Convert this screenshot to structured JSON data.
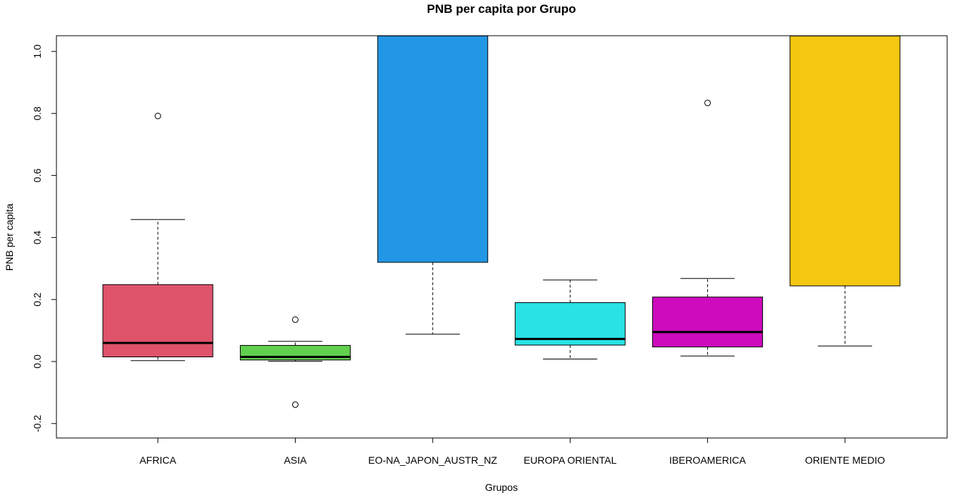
{
  "chart_data": {
    "type": "boxplot",
    "title": "PNB per capita por Grupo",
    "xlabel": "Grupos",
    "ylabel": "PNB per capita",
    "ylim": [
      -0.2,
      1.0
    ],
    "y_ticks": [
      -0.2,
      0.0,
      0.2,
      0.4,
      0.6,
      0.8,
      1.0
    ],
    "y_tick_labels": [
      "-0.2",
      "0.0",
      "0.2",
      "0.4",
      "0.6",
      "0.8",
      "1.0"
    ],
    "grid": false,
    "categories": [
      "AFRICA",
      "ASIA",
      "EO-NA_JAPON_AUSTR_NZ",
      "EUROPA ORIENTAL",
      "IBEROAMERICA",
      "ORIENTE MEDIO"
    ],
    "boxes": [
      {
        "category": "AFRICA",
        "whisker_low": 0.003,
        "q1": 0.015,
        "median": 0.06,
        "q3": 0.248,
        "whisker_high": 0.458,
        "outliers": [
          0.792
        ],
        "color": "#DF536B"
      },
      {
        "category": "ASIA",
        "whisker_low": 0.001,
        "q1": 0.005,
        "median": 0.015,
        "q3": 0.052,
        "whisker_high": 0.065,
        "outliers": [
          0.135,
          -0.139
        ],
        "color": "#61D04F"
      },
      {
        "category": "EO-NA_JAPON_AUSTR_NZ",
        "whisker_low": 0.088,
        "q1": 0.32,
        "median": null,
        "q3": 1.05,
        "whisker_high": null,
        "outliers": [],
        "color": "#2297E6"
      },
      {
        "category": "EUROPA ORIENTAL",
        "whisker_low": 0.008,
        "q1": 0.053,
        "median": 0.073,
        "q3": 0.19,
        "whisker_high": 0.263,
        "outliers": [],
        "color": "#28E2E5"
      },
      {
        "category": "IBEROAMERICA",
        "whisker_low": 0.018,
        "q1": 0.047,
        "median": 0.095,
        "q3": 0.208,
        "whisker_high": 0.268,
        "outliers": [
          0.834
        ],
        "color": "#CD0BBC"
      },
      {
        "category": "ORIENTE MEDIO",
        "whisker_low": 0.05,
        "q1": 0.244,
        "median": null,
        "q3": 1.05,
        "whisker_high": null,
        "outliers": [],
        "color": "#F5C710"
      }
    ]
  }
}
